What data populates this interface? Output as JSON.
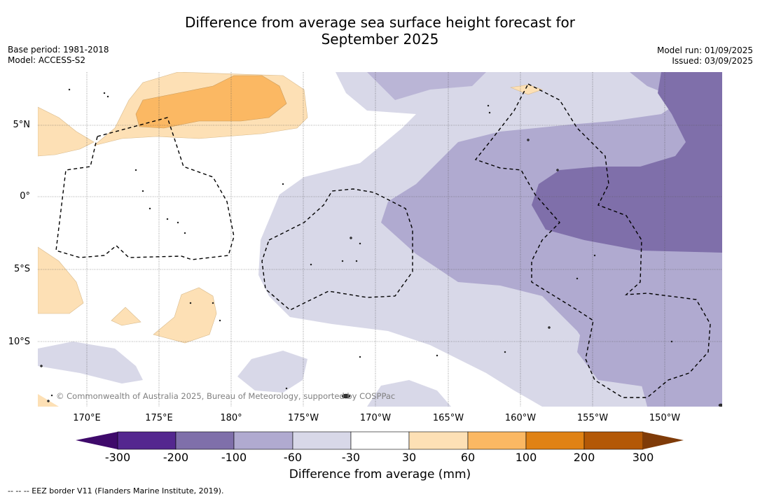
{
  "title": {
    "line1": "Difference from average sea surface height forecast for",
    "line2": "September 2025"
  },
  "meta_left": {
    "base_period": "Base period: 1981-2018",
    "model": "Model: ACCESS-S2"
  },
  "meta_right": {
    "model_run": "Model run: 01/09/2025",
    "issued": "Issued: 03/09/2025"
  },
  "map": {
    "lat_labels": [
      "5°N",
      "0°",
      "5°S",
      "10°S"
    ],
    "lon_labels": [
      "170°E",
      "175°E",
      "180°",
      "175°W",
      "170°W",
      "165°W",
      "160°W",
      "155°W",
      "150°W"
    ],
    "copyright": "© Commonwealth of Australia 2025, Bureau of Meteorology, supported by COSPPac"
  },
  "colorbar": {
    "ticks": [
      "-300",
      "-200",
      "-100",
      "-60",
      "-30",
      "30",
      "60",
      "100",
      "200",
      "300"
    ],
    "colors": [
      "#3f0a6b",
      "#54278f",
      "#7f6faa",
      "#b0aad0",
      "#d8d8e8",
      "#ffffff",
      "#fde0b5",
      "#fbb863",
      "#e08214",
      "#b35806",
      "#7f3b08"
    ],
    "label": "Difference from average (mm)"
  },
  "footer": "--  --  -- EEZ border V11 (Flanders Marine Institute, 2019)."
}
